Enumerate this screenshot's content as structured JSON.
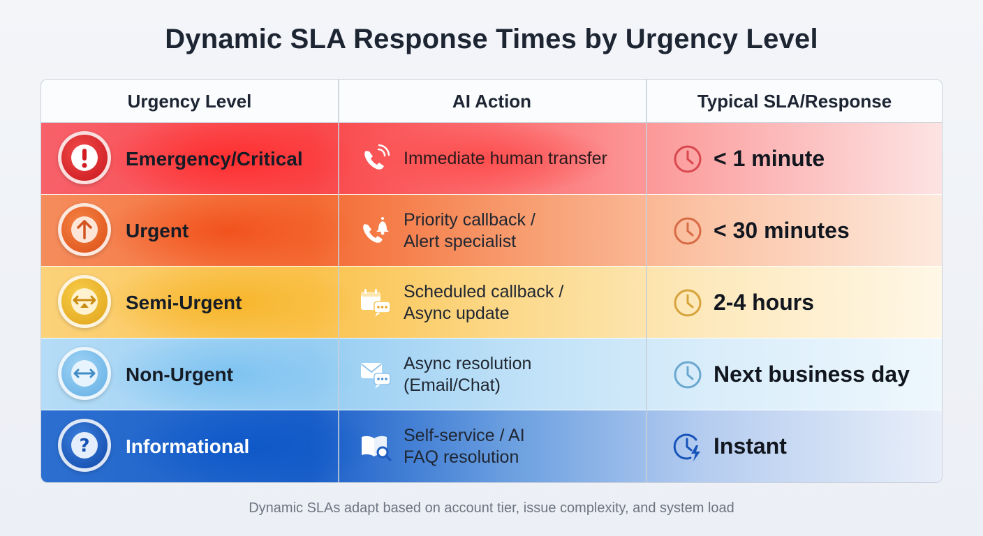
{
  "title": "Dynamic SLA Response Times by Urgency Level",
  "columns": [
    "Urgency Level",
    "AI Action",
    "Typical SLA/Response"
  ],
  "rows": [
    {
      "level": "Emergency/Critical",
      "action_line1": "Immediate human transfer",
      "action_line2": "",
      "sla": "< 1 minute",
      "level_icon": "exclamation-icon",
      "action_icon": "phone-ringing-icon",
      "sla_icon": "clock-icon",
      "accent": "#e0262b"
    },
    {
      "level": "Urgent",
      "action_line1": "Priority callback /",
      "action_line2": "Alert specialist",
      "sla": "< 30 minutes",
      "level_icon": "arrow-up-icon",
      "action_icon": "phone-bell-icon",
      "sla_icon": "clock-icon",
      "accent": "#ea5a1e"
    },
    {
      "level": "Semi-Urgent",
      "action_line1": "Scheduled callback /",
      "action_line2": "Async update",
      "sla": "2-4 hours",
      "level_icon": "arrows-horizontal-icon",
      "action_icon": "calendar-chat-icon",
      "sla_icon": "clock-icon",
      "accent": "#eaa91f"
    },
    {
      "level": "Non-Urgent",
      "action_line1": "Async resolution",
      "action_line2": "(Email/Chat)",
      "sla": "Next business day",
      "level_icon": "double-arrow-icon",
      "action_icon": "email-chat-icon",
      "sla_icon": "clock-icon",
      "accent": "#5aa6dc"
    },
    {
      "level": "Informational",
      "action_line1": "Self-service / AI",
      "action_line2": "FAQ resolution",
      "sla": "Instant",
      "level_icon": "question-icon",
      "action_icon": "book-search-icon",
      "sla_icon": "clock-bolt-icon",
      "accent": "#1553b8"
    }
  ],
  "footer": "Dynamic SLAs adapt based on account tier, issue complexity, and system load"
}
